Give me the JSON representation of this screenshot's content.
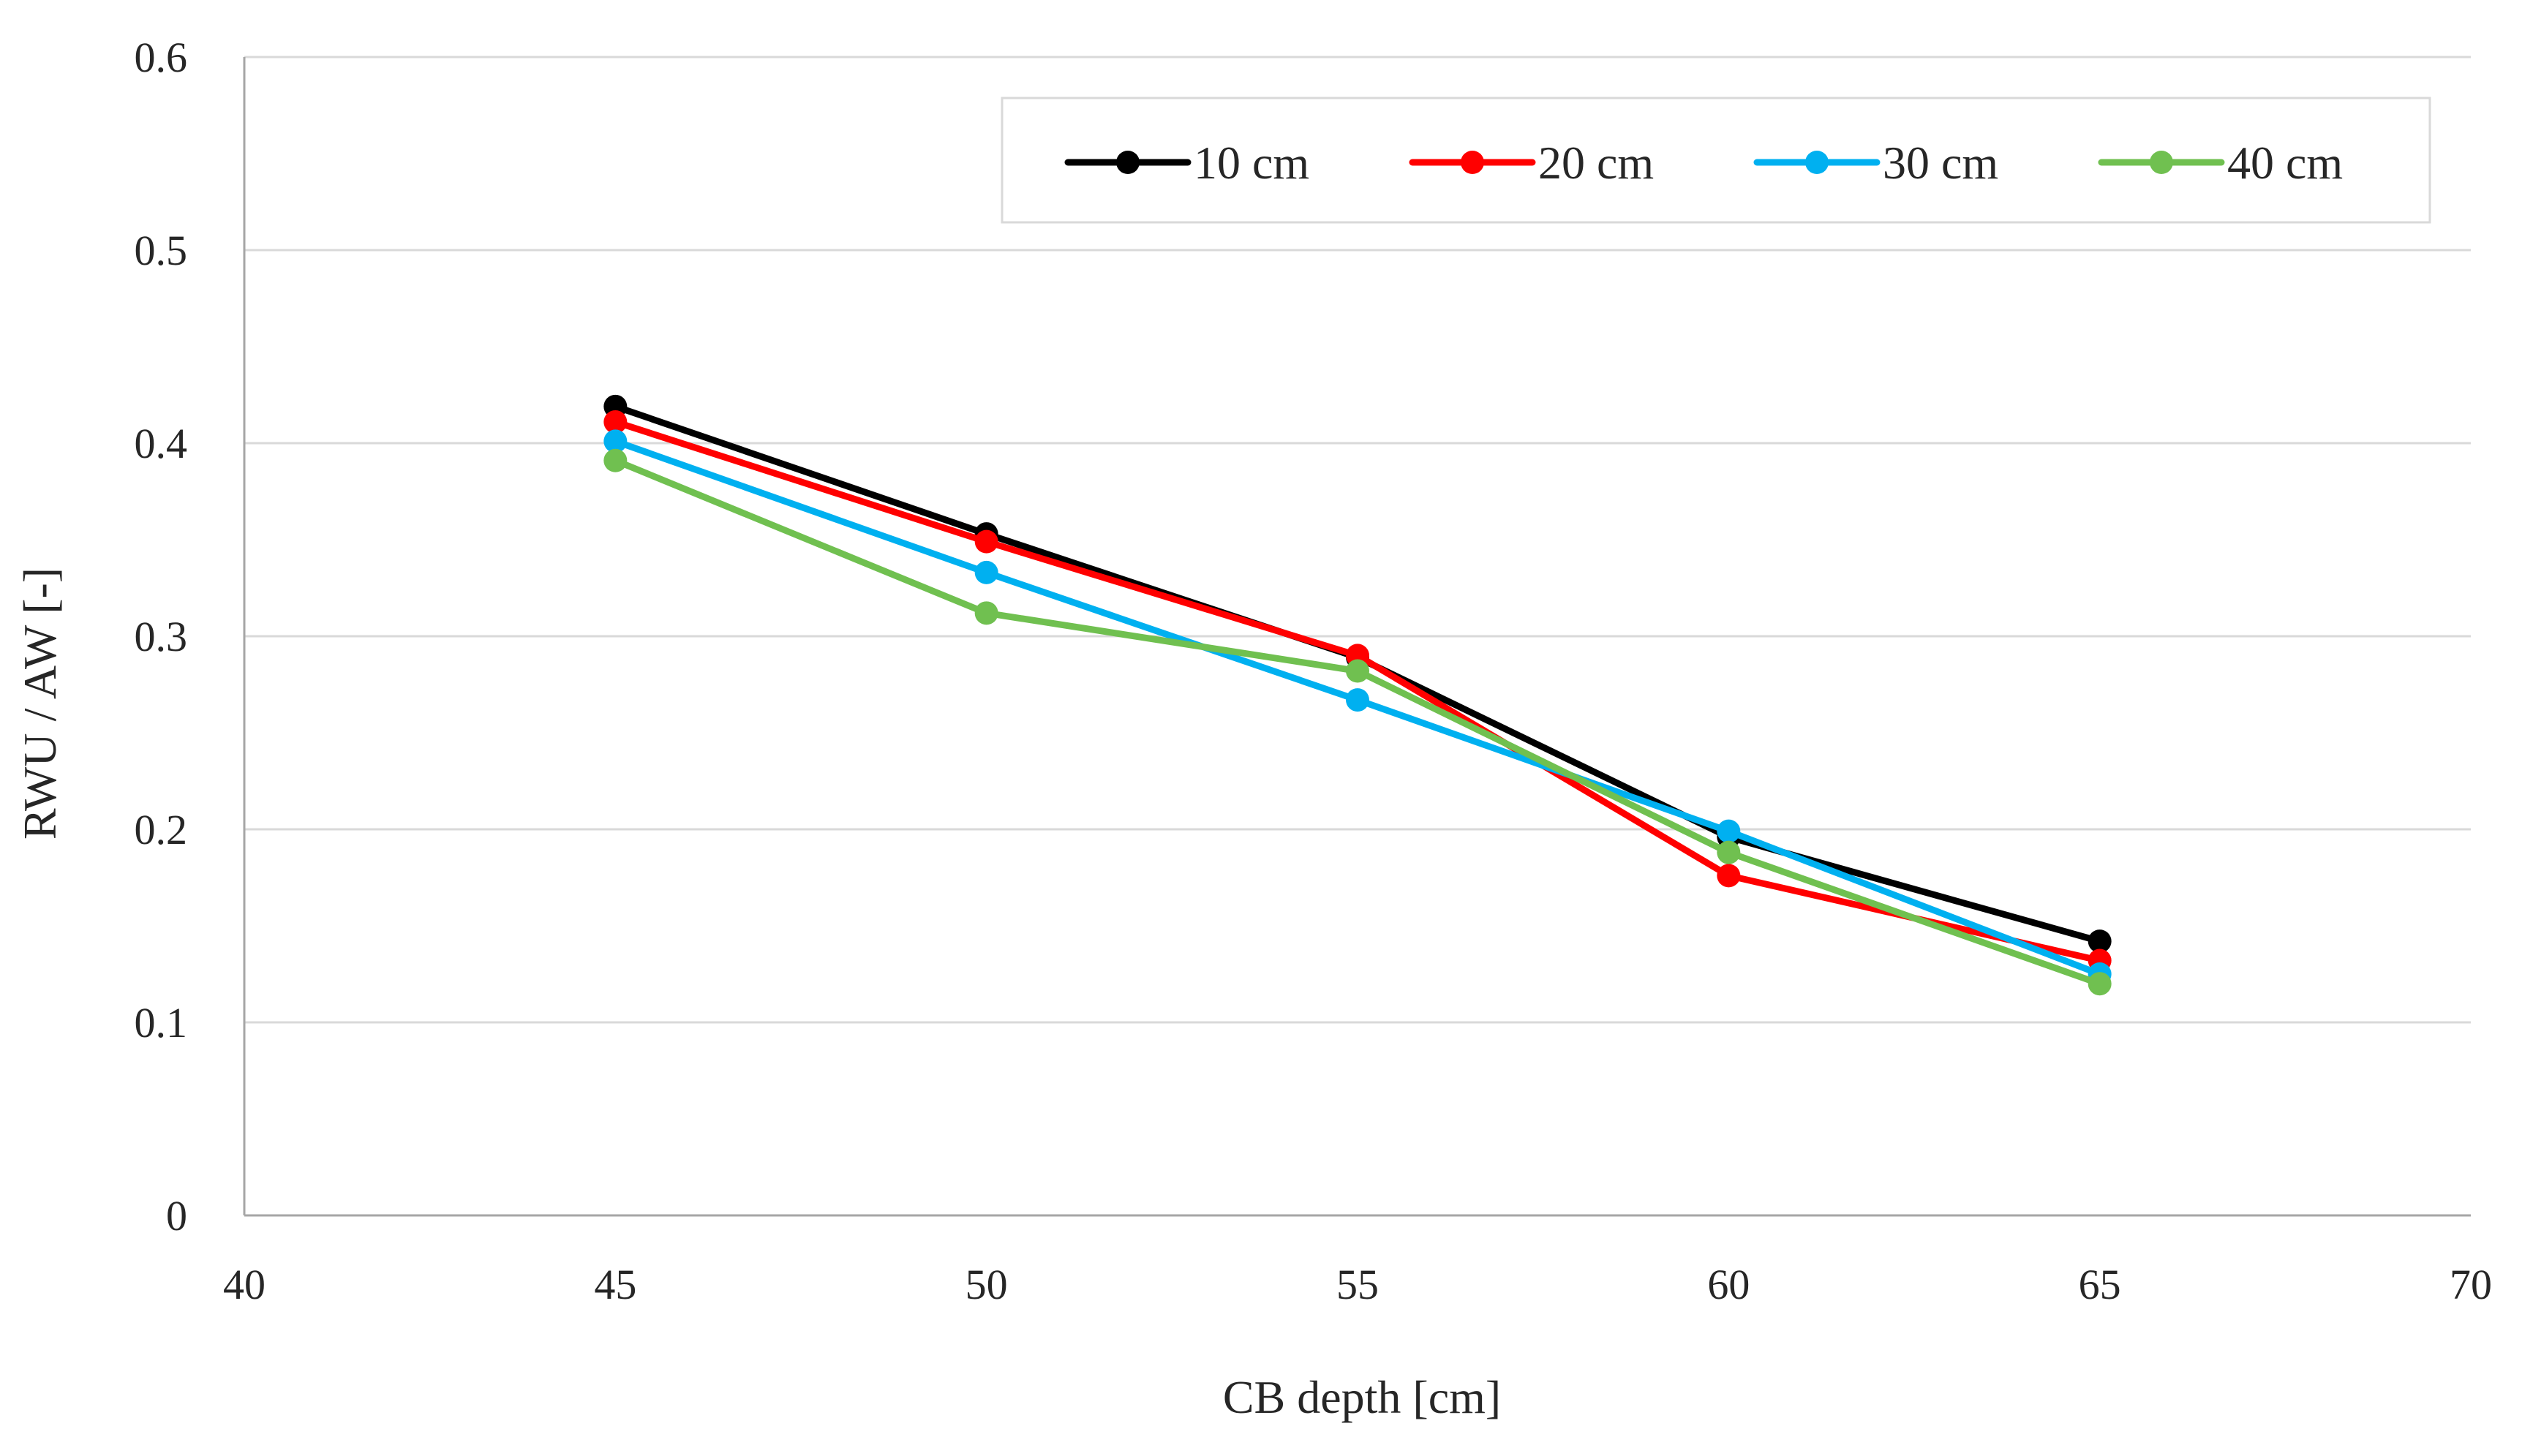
{
  "chart_data": {
    "type": "line",
    "title": "",
    "xlabel": "CB depth [cm]",
    "ylabel": "RWU / AW [-]",
    "xlim": [
      40,
      70
    ],
    "ylim": [
      0,
      0.6
    ],
    "x_ticks": [
      40,
      45,
      50,
      55,
      60,
      65,
      70
    ],
    "x_tick_labels": [
      "40",
      "45",
      "50",
      "55",
      "60",
      "65",
      "70"
    ],
    "y_ticks": [
      0,
      0.1,
      0.2,
      0.3,
      0.4,
      0.5,
      0.6
    ],
    "y_tick_labels": [
      "0",
      "0.1",
      "0.2",
      "0.3",
      "0.4",
      "0.5",
      "0.6"
    ],
    "grid": "horizontal",
    "legend_position": "top-right",
    "x": [
      45,
      50,
      55,
      60,
      65
    ],
    "series": [
      {
        "name": "10 cm",
        "color": "#000000",
        "values": [
          0.419,
          0.353,
          0.289,
          0.196,
          0.142
        ]
      },
      {
        "name": "20 cm",
        "color": "#ff0000",
        "values": [
          0.411,
          0.349,
          0.29,
          0.176,
          0.132
        ]
      },
      {
        "name": "30 cm",
        "color": "#00b0f0",
        "values": [
          0.401,
          0.333,
          0.267,
          0.199,
          0.125
        ]
      },
      {
        "name": "40 cm",
        "color": "#70c050",
        "values": [
          0.391,
          0.312,
          0.282,
          0.188,
          0.12
        ]
      }
    ]
  }
}
